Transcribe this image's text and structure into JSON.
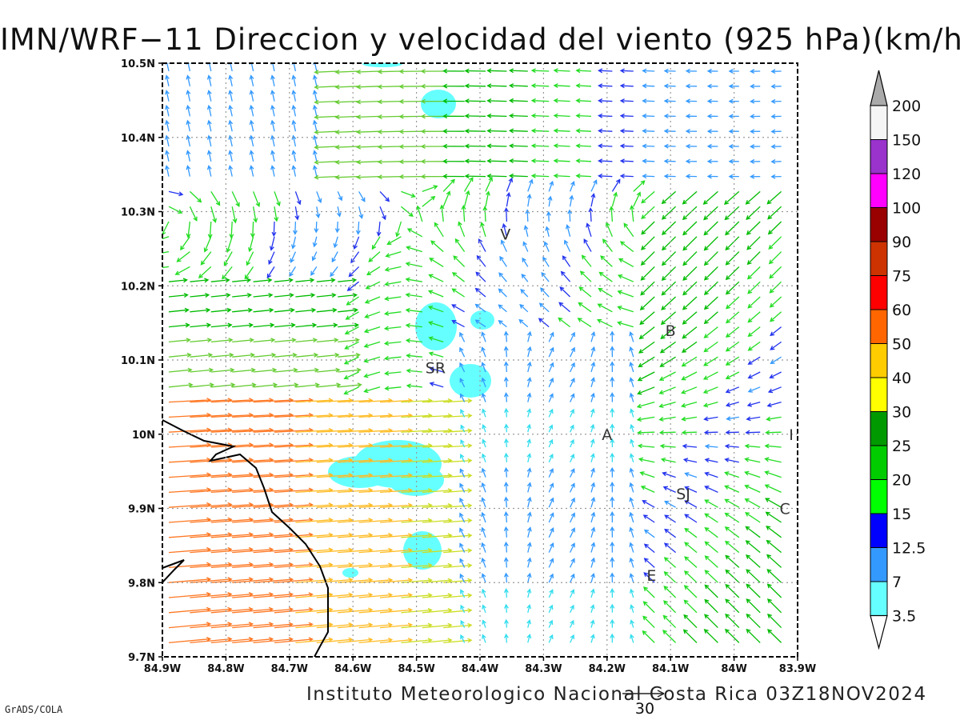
{
  "title": "IMN/WRF−11 Direccion y velocidad del viento (925 hPa)(km/h)",
  "credit": "Instituto Meteorologico Nacional Costa Rica 03Z18NOV2024",
  "software": "GrADS/COLA",
  "map": {
    "lon_range": [
      -84.9,
      -83.9
    ],
    "lat_range": [
      9.7,
      10.5
    ],
    "lon_ticks": [
      "84.9W",
      "84.8W",
      "84.7W",
      "84.6W",
      "84.5W",
      "84.4W",
      "84.3W",
      "84.2W",
      "84.1W",
      "84W",
      "83.9W"
    ],
    "lat_ticks": [
      "9.7N",
      "9.8N",
      "9.9N",
      "10N",
      "10.1N",
      "10.2N",
      "10.3N",
      "10.4N",
      "10.5N"
    ],
    "grid": "dotted",
    "cities": [
      {
        "label": "V",
        "lon": -84.36,
        "lat": 10.27
      },
      {
        "label": "SR",
        "lon": -84.47,
        "lat": 10.09
      },
      {
        "label": "B",
        "lon": -84.1,
        "lat": 10.14
      },
      {
        "label": "A",
        "lon": -84.2,
        "lat": 10.0
      },
      {
        "label": "SJ",
        "lon": -84.08,
        "lat": 9.92
      },
      {
        "label": "C",
        "lon": -83.92,
        "lat": 9.9
      },
      {
        "label": "E",
        "lon": -84.13,
        "lat": 9.81
      },
      {
        "label": "I",
        "lon": -83.91,
        "lat": 10.0
      }
    ],
    "reference_vector": {
      "label": "30",
      "value": 30,
      "unit": "km/h"
    }
  },
  "colorbar": {
    "labels": [
      "3.5",
      "7",
      "12.5",
      "15",
      "20",
      "25",
      "30",
      "40",
      "50",
      "60",
      "75",
      "90",
      "100",
      "120",
      "150",
      "200"
    ],
    "colors": [
      "#ffffff",
      "#66ffff",
      "#3399ff",
      "#0000ff",
      "#00ff00",
      "#00cc00",
      "#009900",
      "#ffff00",
      "#ffcc00",
      "#ff6600",
      "#ff0000",
      "#cc3300",
      "#990000",
      "#ff00ff",
      "#9933cc",
      "#f5f5f5",
      "#aaaaaa"
    ]
  },
  "chart_data": {
    "type": "vector field",
    "variable": "wind direction and speed at 925 hPa",
    "unit": "km/h",
    "shaded_variable": "wind speed",
    "shaded_regions": [
      {
        "near": "84.45W 10.45N"
      },
      {
        "near": "84.47W 10.14N"
      },
      {
        "near": "84.40W 10.16N"
      },
      {
        "near": "84.41W 10.08N"
      },
      {
        "near": "84.58W 9.95N"
      },
      {
        "near": "84.46W 9.84N"
      }
    ]
  }
}
